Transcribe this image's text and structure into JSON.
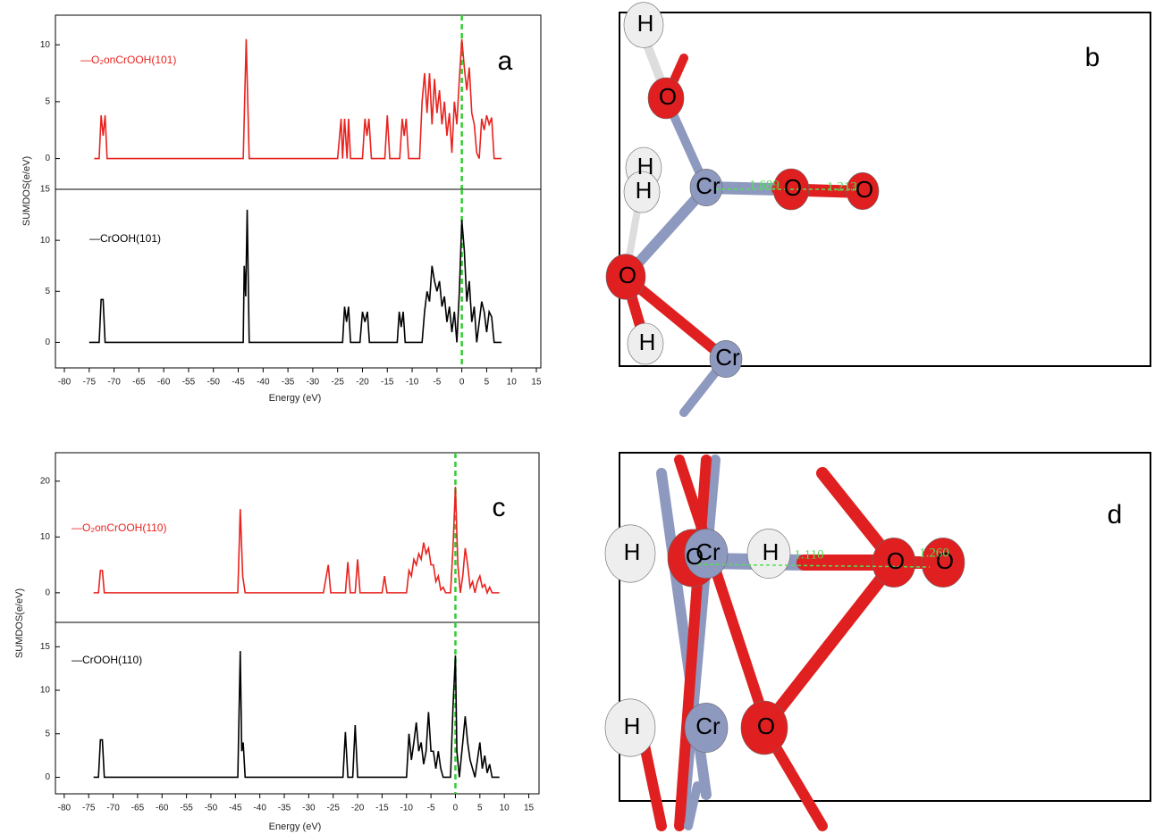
{
  "chart_data": [
    {
      "type": "line",
      "panel_label": "a",
      "ylabel": "SUMDOS(e/eV)",
      "xlim": [
        -81.8,
        15.9
      ],
      "ylim": [
        -2.7,
        12.6
      ],
      "yticks": [
        0,
        5,
        10
      ],
      "reference_x": 0,
      "reference_color": "#33cc33",
      "series": [
        {
          "name": "—O₂onCrOOH(101)",
          "color": "#e8231f",
          "x": [
            -74,
            -73,
            -72.6,
            -72.2,
            -71.8,
            -71.4,
            -45,
            -44,
            -43.4,
            -42.8,
            -25,
            -24.3,
            -24,
            -23.6,
            -23.1,
            -22.8,
            -22.4,
            -20,
            -19.5,
            -19.1,
            -18.7,
            -18.2,
            -15.5,
            -15,
            -14.5,
            -12.5,
            -12,
            -11.6,
            -11.2,
            -10.7,
            -8.5,
            -8,
            -7.5,
            -7,
            -6.5,
            -6,
            -5.5,
            -5,
            -4.5,
            -4,
            -3.5,
            -3,
            -2.5,
            -2,
            -1.5,
            -1,
            -0.5,
            0,
            0.5,
            1,
            1.5,
            2,
            2.5,
            3,
            3.5,
            4,
            4.5,
            5,
            5.5,
            6,
            6.5,
            8
          ],
          "values": [
            0,
            0,
            3.8,
            2,
            3.8,
            0,
            0,
            0,
            10.5,
            0,
            0,
            3.5,
            0,
            3.5,
            0,
            3.5,
            0,
            0,
            3.5,
            2,
            3.5,
            0,
            0,
            3.8,
            0,
            0,
            3.5,
            2,
            3.5,
            0,
            0,
            5,
            7.5,
            4,
            7.5,
            3,
            7,
            4,
            6,
            3,
            5,
            2,
            4,
            0.5,
            5,
            3,
            7,
            10.5,
            8,
            6,
            8,
            4,
            3,
            0.5,
            0,
            3.5,
            2.5,
            3.8,
            3,
            3.6,
            0,
            0
          ]
        }
      ]
    },
    {
      "type": "line",
      "xlabel": "Energy (eV)",
      "xlim": [
        -81.8,
        15.9
      ],
      "ylim": [
        -2.5,
        15
      ],
      "yticks": [
        0,
        5,
        10,
        15
      ],
      "xticks": [
        -80,
        -75,
        -70,
        -65,
        -60,
        -55,
        -50,
        -45,
        -40,
        -35,
        -30,
        -25,
        -20,
        -15,
        -10,
        -5,
        0,
        5,
        10,
        15
      ],
      "reference_x": 0,
      "reference_color": "#33cc33",
      "series": [
        {
          "name": "—CrOOH(101)",
          "color": "#000000",
          "x": [
            -75,
            -73,
            -72.6,
            -72.2,
            -71.8,
            -45,
            -44,
            -43.8,
            -43.5,
            -43.2,
            -42.8,
            -24,
            -23.6,
            -23.2,
            -22.8,
            -22.4,
            -20.5,
            -20,
            -19.5,
            -19,
            -18.6,
            -13,
            -12.6,
            -12.2,
            -11.8,
            -11.4,
            -8,
            -7.5,
            -7,
            -6.5,
            -6,
            -5.5,
            -5,
            -4.5,
            -4,
            -3.5,
            -3,
            -2.5,
            -2,
            -1.5,
            -1,
            -0.5,
            0,
            0.5,
            1,
            1.5,
            2,
            2.5,
            3,
            3.5,
            4,
            4.5,
            5,
            5.5,
            6,
            6.5,
            8
          ],
          "values": [
            0,
            0,
            4.2,
            4.2,
            0,
            0,
            0,
            7.5,
            4.5,
            13,
            0,
            0,
            3.5,
            2,
            3.5,
            0,
            0,
            3,
            2,
            3,
            0,
            0,
            3,
            1.5,
            3,
            0,
            0,
            3,
            5,
            4,
            7.5,
            6,
            5,
            6,
            3.5,
            4.5,
            2,
            3.5,
            1,
            3,
            0,
            5,
            12,
            9,
            4,
            6,
            2,
            3.5,
            0,
            2,
            4,
            3,
            1,
            3,
            2.5,
            0,
            0
          ]
        }
      ]
    },
    {
      "type": "line",
      "panel_label": "c",
      "ylabel": "SUMDOS(e/eV)",
      "xlim": [
        -81.8,
        17.1
      ],
      "ylim": [
        -5.3,
        25.1
      ],
      "yticks": [
        0,
        10,
        20
      ],
      "reference_x": 0,
      "reference_color": "#33cc33",
      "series": [
        {
          "name": "—O₂onCrOOH(110)",
          "color": "#e8231f",
          "x": [
            -74,
            -73,
            -72.6,
            -72.2,
            -71.8,
            -45,
            -44.5,
            -44,
            -43.5,
            -43,
            -27,
            -26,
            -25.5,
            -22.5,
            -22,
            -21.5,
            -20.5,
            -20,
            -19.5,
            -15,
            -14.5,
            -14,
            -10,
            -9.5,
            -9,
            -8.5,
            -8,
            -7.5,
            -7,
            -6.5,
            -6,
            -5.5,
            -5,
            -4.5,
            -4,
            -3.5,
            -3,
            -2.5,
            -2,
            -1,
            -0.5,
            0,
            0.5,
            1,
            1.5,
            2,
            2.5,
            3,
            3.5,
            4,
            4.5,
            5,
            5.5,
            6,
            6.5,
            7,
            7.5,
            9
          ],
          "values": [
            0,
            0,
            4,
            4,
            0,
            0,
            0,
            15,
            3,
            0,
            0,
            5,
            0,
            0,
            5.5,
            0,
            0,
            6,
            0,
            0,
            3,
            0,
            0,
            4,
            3,
            6,
            5,
            7,
            6,
            9,
            7,
            8,
            5,
            5,
            2,
            3,
            0.5,
            1,
            0,
            0,
            8,
            19,
            5,
            0,
            3,
            8,
            5,
            1,
            2,
            0,
            2,
            3,
            1,
            1.5,
            0,
            1,
            0,
            0
          ]
        }
      ]
    },
    {
      "type": "line",
      "xlabel": "Energy (eV)",
      "xlim": [
        -81.8,
        17.1
      ],
      "ylim": [
        -1.9,
        17.8
      ],
      "yticks": [
        0,
        5,
        10,
        15
      ],
      "xticks": [
        -80,
        -75,
        -70,
        -65,
        -60,
        -55,
        -50,
        -45,
        -40,
        -35,
        -30,
        -25,
        -20,
        -15,
        -10,
        -5,
        0,
        5,
        10,
        15
      ],
      "reference_x": 0,
      "reference_color": "#33cc33",
      "series": [
        {
          "name": "—CrOOH(110)",
          "color": "#000000",
          "x": [
            -74,
            -73,
            -72.6,
            -72.2,
            -71.8,
            -45,
            -44.5,
            -44,
            -43.7,
            -43.4,
            -43,
            -23,
            -22.5,
            -22,
            -21,
            -20.5,
            -20,
            -10,
            -9.5,
            -9,
            -8.5,
            -8,
            -7.5,
            -7,
            -6.5,
            -6,
            -5.5,
            -5,
            -4.5,
            -4,
            -3.5,
            -3,
            -2.5,
            -1,
            -0.5,
            0,
            0.3,
            0.8,
            1.5,
            2,
            2.5,
            3,
            3.5,
            4,
            4.5,
            5,
            5.5,
            6,
            6.5,
            7,
            7.5,
            9
          ],
          "values": [
            0,
            0,
            4.3,
            4.3,
            0,
            0,
            0,
            14.5,
            3,
            4,
            0,
            0,
            5.2,
            0,
            0,
            6,
            0,
            0,
            5,
            2,
            4,
            6.3,
            3,
            4,
            1.5,
            3,
            7.5,
            3,
            3,
            1,
            3,
            1,
            0,
            0,
            8,
            14,
            3,
            0,
            4,
            7,
            4,
            2,
            1,
            0,
            2,
            4,
            1,
            2.5,
            0.5,
            1.5,
            0,
            0
          ]
        }
      ]
    }
  ],
  "structures": [
    {
      "label": "b",
      "atoms": [
        "H",
        "O",
        "H",
        "H",
        "Cr",
        "O",
        "O",
        "O",
        "H",
        "Cr"
      ],
      "bond_lengths": [
        "1.689",
        "1.213"
      ]
    },
    {
      "label": "d",
      "atoms": [
        "H",
        "O",
        "Cr",
        "H",
        "O",
        "O",
        "H",
        "Cr",
        "O"
      ],
      "bond_lengths": [
        "1.110",
        "1.260"
      ]
    }
  ]
}
